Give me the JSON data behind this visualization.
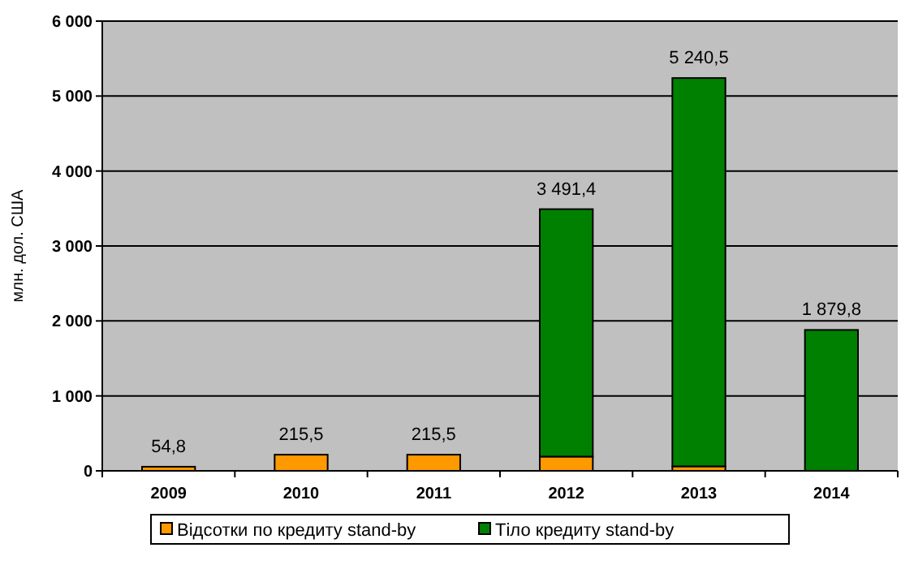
{
  "chart_data": {
    "type": "bar",
    "stacked": true,
    "categories": [
      "2009",
      "2010",
      "2011",
      "2012",
      "2013",
      "2014"
    ],
    "series": [
      {
        "name": "Відсотки по кредиту stand-by",
        "color": "#ff9900",
        "values": [
          54.8,
          215.5,
          215.5,
          190,
          60,
          0
        ]
      },
      {
        "name": "Тіло кредиту stand-by",
        "color": "#008000",
        "values": [
          0,
          0,
          0,
          3301.4,
          5180.5,
          1879.8
        ]
      }
    ],
    "totals": [
      "54,8",
      "215,5",
      "215,5",
      "3 491,4",
      "5 240,5",
      "1 879,8"
    ],
    "ylabel": "млн. дол. США",
    "ylim": [
      0,
      6000
    ],
    "yticks": [
      {
        "value": 0,
        "label": "0"
      },
      {
        "value": 1000,
        "label": "1 000"
      },
      {
        "value": 2000,
        "label": "2 000"
      },
      {
        "value": 3000,
        "label": "3 000"
      },
      {
        "value": 4000,
        "label": "4 000"
      },
      {
        "value": 5000,
        "label": "5 000"
      },
      {
        "value": 6000,
        "label": "6 000"
      }
    ],
    "grid": "y",
    "legend": "bottom"
  }
}
